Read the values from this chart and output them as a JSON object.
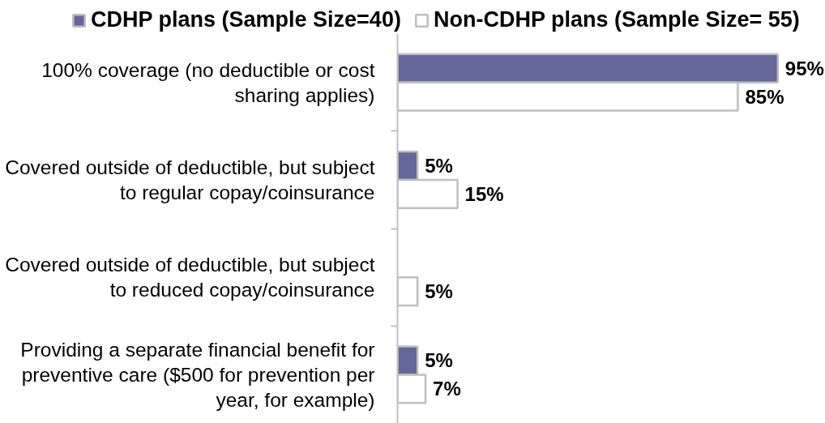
{
  "chart_data": {
    "type": "bar",
    "orientation": "horizontal",
    "tick_labels": "y",
    "legend": "top",
    "categories": [
      "100% coverage (no deductible or cost sharing applies)",
      "Covered outside of deductible, but subject to regular copay/coinsurance",
      "Covered outside of deductible, but subject to reduced copay/coinsurance",
      "Providing a separate financial benefit for preventive care ($500 for prevention per year, for example)"
    ],
    "series": [
      {
        "name": "CDHP plans (Sample Size=40)",
        "color": "#656699",
        "values": [
          95,
          5,
          null,
          5
        ],
        "value_labels": [
          "95%",
          "5%",
          null,
          "5%"
        ]
      },
      {
        "name": "Non-CDHP plans (Sample Size= 55)",
        "color": "#ffffff",
        "values": [
          85,
          15,
          5,
          7
        ],
        "value_labels": [
          "85%",
          "15%",
          "5%",
          "7%"
        ]
      }
    ]
  }
}
